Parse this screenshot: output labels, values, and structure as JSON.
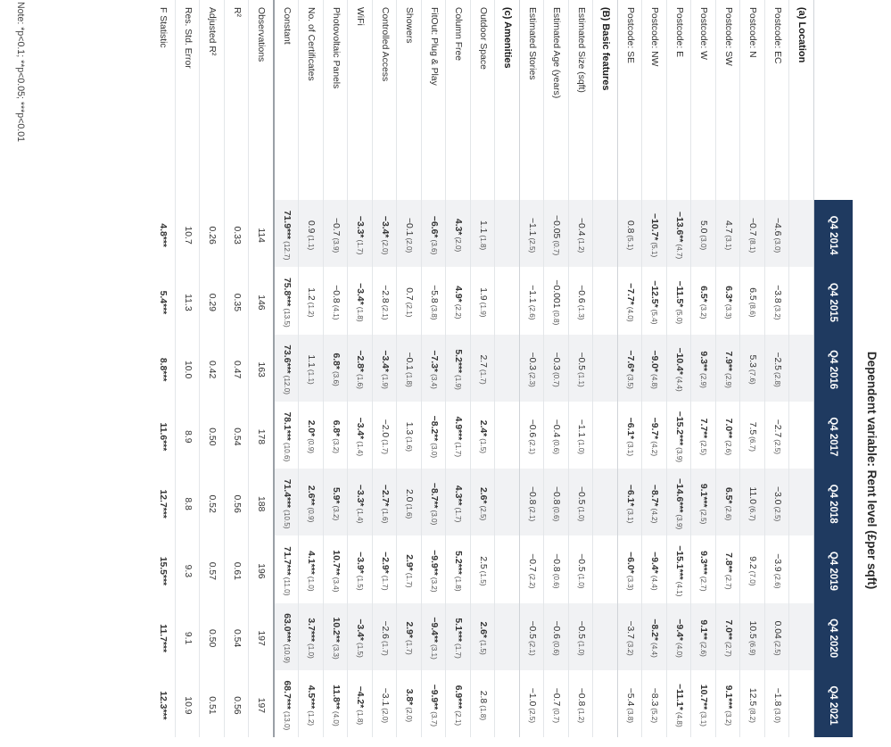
{
  "title": "Dependent variable: Rent level (£per sqft)",
  "years": [
    "Q4 2014",
    "Q4 2015",
    "Q4 2016",
    "Q4 2017",
    "Q4 2018",
    "Q4 2019",
    "Q4 2020",
    "Q4 2021"
  ],
  "sections": [
    {
      "label": "(a) Location",
      "rows": [
        {
          "label": "Postcode: EC",
          "cells": [
            {
              "v": "−4.6",
              "se": "(3.0)"
            },
            {
              "v": "−3.8",
              "se": "(3.2)"
            },
            {
              "v": "−2.5",
              "se": "(2.8)"
            },
            {
              "v": "−2.7",
              "se": "(2.5)"
            },
            {
              "v": "−3.0",
              "se": "(2.5)"
            },
            {
              "v": "−3.9",
              "se": "(2.6)"
            },
            {
              "v": "0.04",
              "se": "(2.5)"
            },
            {
              "v": "−1.8",
              "se": "(3.0)"
            }
          ]
        },
        {
          "label": "Postcode: N",
          "cells": [
            {
              "v": "−0.7",
              "se": "(8.1)"
            },
            {
              "v": "6.5",
              "se": "(8.6)"
            },
            {
              "v": "5.3",
              "se": "(7.6)"
            },
            {
              "v": "7.5",
              "se": "(6.7)"
            },
            {
              "v": "11.0",
              "se": "(6.7)"
            },
            {
              "v": "9.2",
              "se": "(7.0)"
            },
            {
              "v": "10.5",
              "se": "(6.9)"
            },
            {
              "v": "12.5",
              "se": "(8.2)"
            }
          ]
        },
        {
          "label": "Postcode: SW",
          "cells": [
            {
              "v": "4.7",
              "se": "(3.1)"
            },
            {
              "v": "6.3*",
              "se": "(3.3)",
              "b": 1
            },
            {
              "v": "7.9**",
              "se": "(2.9)",
              "b": 1
            },
            {
              "v": "7.0**",
              "se": "(2.6)",
              "b": 1
            },
            {
              "v": "6.5*",
              "se": "(2.6)",
              "b": 1
            },
            {
              "v": "7.8**",
              "se": "(2.7)",
              "b": 1
            },
            {
              "v": "7.0**",
              "se": "(2.7)",
              "b": 1
            },
            {
              "v": "9.1***",
              "se": "(3.2)",
              "b": 1
            }
          ]
        },
        {
          "label": "Postcode: W",
          "cells": [
            {
              "v": "5.0",
              "se": "(3.0)"
            },
            {
              "v": "6.5*",
              "se": "(3.2)",
              "b": 1
            },
            {
              "v": "9.3**",
              "se": "(2.9)",
              "b": 1
            },
            {
              "v": "7.7**",
              "se": "(2.5)",
              "b": 1
            },
            {
              "v": "9.1***",
              "se": "(2.5)",
              "b": 1
            },
            {
              "v": "9.3***",
              "se": "(2.7)",
              "b": 1
            },
            {
              "v": "9.1**",
              "se": "(2.6)",
              "b": 1
            },
            {
              "v": "10.7**",
              "se": "(3.1)",
              "b": 1
            }
          ]
        },
        {
          "label": "Postcode: E",
          "cells": [
            {
              "v": "−13.6**",
              "se": "(4.7)",
              "b": 1
            },
            {
              "v": "−11.5*",
              "se": "(5.0)",
              "b": 1
            },
            {
              "v": "−10.4*",
              "se": "(4.4)",
              "b": 1
            },
            {
              "v": "−15.2***",
              "se": "(3.9)",
              "b": 1
            },
            {
              "v": "−14.6***",
              "se": "(3.9)",
              "b": 1
            },
            {
              "v": "−15.1***",
              "se": "(4.1)",
              "b": 1
            },
            {
              "v": "−9.4*",
              "se": "(4.0)",
              "b": 1
            },
            {
              "v": "−11.1*",
              "se": "(4.8)",
              "b": 1
            }
          ]
        },
        {
          "label": "Postcode: NW",
          "cells": [
            {
              "v": "−10.7*",
              "se": "(5.1)",
              "b": 1
            },
            {
              "v": "−12.5*",
              "se": "(5.4)",
              "b": 1
            },
            {
              "v": "−9.0*",
              "se": "(4.8)",
              "b": 1
            },
            {
              "v": "−9.7*",
              "se": "(4.2)",
              "b": 1
            },
            {
              "v": "−8.7*",
              "se": "(4.2)",
              "b": 1
            },
            {
              "v": "−9.4*",
              "se": "(4.4)",
              "b": 1
            },
            {
              "v": "−8.2*",
              "se": "(4.4)",
              "b": 1
            },
            {
              "v": "−8.3",
              "se": "(5.2)"
            }
          ]
        },
        {
          "label": "Postcode: SE",
          "cells": [
            {
              "v": "0.8",
              "se": "(5.1)"
            },
            {
              "v": "−7.7*",
              "se": "(4.0)",
              "b": 1
            },
            {
              "v": "−7.6*",
              "se": "(3.5)",
              "b": 1
            },
            {
              "v": "−6.1*",
              "se": "(3.1)",
              "b": 1
            },
            {
              "v": "−6.1*",
              "se": "(3.1)",
              "b": 1
            },
            {
              "v": "−6.0*",
              "se": "(3.3)",
              "b": 1
            },
            {
              "v": "−3.7",
              "se": "(3.2)"
            },
            {
              "v": "−5.4",
              "se": "(3.8)"
            }
          ]
        }
      ]
    },
    {
      "label": "(B) Basic features",
      "rows": [
        {
          "label": "Estimated Size (sqft)",
          "cells": [
            {
              "v": "−0.4",
              "se": "(1.2)"
            },
            {
              "v": "−0.6",
              "se": "(1.3)"
            },
            {
              "v": "−0.5",
              "se": "(1.1)"
            },
            {
              "v": "−1.1",
              "se": "(1.0)"
            },
            {
              "v": "−0.5",
              "se": "(1.0)"
            },
            {
              "v": "−0.5",
              "se": "(1.0)"
            },
            {
              "v": "−0.5",
              "se": "(1.0)"
            },
            {
              "v": "−0.8",
              "se": "(1.2)"
            }
          ]
        },
        {
          "label": "Estimated Age (years)",
          "cells": [
            {
              "v": "−0.05",
              "se": "(0.7)"
            },
            {
              "v": "−0.001",
              "se": "(0.8)"
            },
            {
              "v": "−0.3",
              "se": "(0.7)"
            },
            {
              "v": "−0.4",
              "se": "(0.6)"
            },
            {
              "v": "−0.8",
              "se": "(0.6)"
            },
            {
              "v": "−0.8",
              "se": "(0.6)"
            },
            {
              "v": "−0.6",
              "se": "(0.6)"
            },
            {
              "v": "−0.7",
              "se": "(0.7)"
            }
          ]
        },
        {
          "label": "Estimated Stories",
          "cells": [
            {
              "v": "−1.1",
              "se": "(2.5)"
            },
            {
              "v": "−1.1",
              "se": "(2.6)"
            },
            {
              "v": "−0.3",
              "se": "(2.3)"
            },
            {
              "v": "−0.6",
              "se": "(2.1)"
            },
            {
              "v": "−0.8",
              "se": "(2.1)"
            },
            {
              "v": "−0.7",
              "se": "(2.2)"
            },
            {
              "v": "−0.5",
              "se": "(2.1)"
            },
            {
              "v": "−1.0",
              "se": "(2.5)"
            }
          ]
        }
      ]
    },
    {
      "label": "(c) Amenities",
      "rows": [
        {
          "label": "Outdoor Space",
          "cells": [
            {
              "v": "1.1",
              "se": "(1.8)"
            },
            {
              "v": "1.9",
              "se": "(1.9)"
            },
            {
              "v": "2.7",
              "se": "(1.7)"
            },
            {
              "v": "2.4*",
              "se": "(1.5)",
              "b": 1
            },
            {
              "v": "2.6*",
              "se": "(2.5)",
              "b": 1
            },
            {
              "v": "2.5",
              "se": "(1.5)"
            },
            {
              "v": "2.6*",
              "se": "(1.5)",
              "b": 1
            },
            {
              "v": "2.8",
              "se": "(1.8)"
            }
          ]
        },
        {
          "label": "Column Free",
          "cells": [
            {
              "v": "4.3*",
              "se": "(2.0)",
              "b": 1
            },
            {
              "v": "4.9*",
              "se": "(2.2)",
              "b": 1
            },
            {
              "v": "5.2***",
              "se": "(1.9)",
              "b": 1
            },
            {
              "v": "4.9***",
              "se": "(1.7)",
              "b": 1
            },
            {
              "v": "4.3**",
              "se": "(1.7)",
              "b": 1
            },
            {
              "v": "5.2***",
              "se": "(1.8)",
              "b": 1
            },
            {
              "v": "5.1***",
              "se": "(1.7)",
              "b": 1
            },
            {
              "v": "6.9***",
              "se": "(2.1)",
              "b": 1
            }
          ]
        },
        {
          "label": "FitOut: Plug & Play",
          "cells": [
            {
              "v": "−6.6*",
              "se": "(3.6)",
              "b": 1
            },
            {
              "v": "−5.8",
              "se": "(3.8)"
            },
            {
              "v": "−7.3*",
              "se": "(3.4)",
              "b": 1
            },
            {
              "v": "−8.2**",
              "se": "(3.0)",
              "b": 1
            },
            {
              "v": "−8.7**",
              "se": "(3.0)",
              "b": 1
            },
            {
              "v": "−9.9**",
              "se": "(3.2)",
              "b": 1
            },
            {
              "v": "−9.4**",
              "se": "(3.1)",
              "b": 1
            },
            {
              "v": "−9.9**",
              "se": "(3.7)",
              "b": 1
            }
          ]
        },
        {
          "label": "Showers",
          "cells": [
            {
              "v": "−0.1",
              "se": "(2.0)"
            },
            {
              "v": "0.7",
              "se": "(2.1)"
            },
            {
              "v": "−0.1",
              "se": "(1.8)"
            },
            {
              "v": "1.3",
              "se": "(1.6)"
            },
            {
              "v": "2.0",
              "se": "(1.6)"
            },
            {
              "v": "2.9*",
              "se": "(1.7)",
              "b": 1
            },
            {
              "v": "2.9*",
              "se": "(1.7)",
              "b": 1
            },
            {
              "v": "3.8*",
              "se": "(2.0)",
              "b": 1
            }
          ]
        },
        {
          "label": "Controlled Access",
          "cells": [
            {
              "v": "−3.4*",
              "se": "(2.0)",
              "b": 1
            },
            {
              "v": "−2.8",
              "se": "(2.1)"
            },
            {
              "v": "−3.4*",
              "se": "(1.9)",
              "b": 1
            },
            {
              "v": "−2.0",
              "se": "(1.7)"
            },
            {
              "v": "−2.7*",
              "se": "(1.6)",
              "b": 1
            },
            {
              "v": "−2.9*",
              "se": "(1.7)",
              "b": 1
            },
            {
              "v": "−2.6",
              "se": "(1.7)"
            },
            {
              "v": "−3.1",
              "se": "(2.0)"
            }
          ]
        },
        {
          "label": "WiFi",
          "cells": [
            {
              "v": "−3.3*",
              "se": "(1.7)",
              "b": 1
            },
            {
              "v": "−3.4*",
              "se": "(1.8)",
              "b": 1
            },
            {
              "v": "−2.8*",
              "se": "(1.6)",
              "b": 1
            },
            {
              "v": "−3.4*",
              "se": "(1.4)",
              "b": 1
            },
            {
              "v": "−3.3*",
              "se": "(1.4)",
              "b": 1
            },
            {
              "v": "−3.9*",
              "se": "(1.5)",
              "b": 1
            },
            {
              "v": "−3.4*",
              "se": "(1.5)",
              "b": 1
            },
            {
              "v": "−4.2*",
              "se": "(1.8)",
              "b": 1
            }
          ]
        },
        {
          "label": "Photovoltaic Panels",
          "cells": [
            {
              "v": "−0.7",
              "se": "(3.9)"
            },
            {
              "v": "−0.8",
              "se": "(4.1)"
            },
            {
              "v": "6.8*",
              "se": "(3.6)",
              "b": 1
            },
            {
              "v": "6.8*",
              "se": "(3.2)",
              "b": 1
            },
            {
              "v": "5.9*",
              "se": "(3.2)",
              "b": 1
            },
            {
              "v": "10.7**",
              "se": "(3.4)",
              "b": 1
            },
            {
              "v": "10.2**",
              "se": "(3.3)",
              "b": 1
            },
            {
              "v": "11.8**",
              "se": "(4.0)",
              "b": 1
            }
          ]
        },
        {
          "label": "No. of Certificates",
          "cells": [
            {
              "v": "0.9",
              "se": "(1.1)"
            },
            {
              "v": "1.2",
              "se": "(1.2)"
            },
            {
              "v": "1.1",
              "se": "(1.1)"
            },
            {
              "v": "2.0*",
              "se": "(0.9)",
              "b": 1
            },
            {
              "v": "2.6**",
              "se": "(0.9)",
              "b": 1
            },
            {
              "v": "4.1***",
              "se": "(1.0)",
              "b": 1
            },
            {
              "v": "3.7***",
              "se": "(1.0)",
              "b": 1
            },
            {
              "v": "4.5***",
              "se": "(1.2)",
              "b": 1
            }
          ]
        },
        {
          "label": "Constant",
          "cells": [
            {
              "v": "71.9***",
              "se": "(12.7)",
              "b": 1
            },
            {
              "v": "75.8***",
              "se": "(13.5)",
              "b": 1
            },
            {
              "v": "73.6***",
              "se": "(12.0)",
              "b": 1
            },
            {
              "v": "78.1***",
              "se": "(10.6)",
              "b": 1
            },
            {
              "v": "71.4***",
              "se": "(10.5)",
              "b": 1
            },
            {
              "v": "71.7***",
              "se": "(11.0)",
              "b": 1
            },
            {
              "v": "63.0***",
              "se": "(10.9)",
              "b": 1
            },
            {
              "v": "68.7***",
              "se": "(13.0)",
              "b": 1
            }
          ]
        }
      ]
    }
  ],
  "stats": [
    {
      "label": "Observations",
      "cells": [
        "114",
        "146",
        "163",
        "178",
        "188",
        "196",
        "197",
        "197"
      ]
    },
    {
      "label": "R²",
      "cells": [
        "0.33",
        "0.35",
        "0.47",
        "0.54",
        "0.56",
        "0.61",
        "0.54",
        "0.56"
      ]
    },
    {
      "label": "Adjusted R²",
      "cells": [
        "0.26",
        "0.29",
        "0.42",
        "0.50",
        "0.52",
        "0.57",
        "0.50",
        "0.51"
      ]
    },
    {
      "label": "Res. Std. Error",
      "cells": [
        "10.7",
        "11.3",
        "10.0",
        "8.9",
        "8.8",
        "9.3",
        "9.1",
        "10.9"
      ]
    },
    {
      "label": "F Statistic",
      "cells": [
        "4.8***",
        "5.4***",
        "8.8***",
        "11.6***",
        "12.7***",
        "15.5***",
        "11.7***",
        "12.3***"
      ],
      "bold": true
    }
  ],
  "note": "Note: *p<0.1; **p<0.05; ***p<0.01"
}
